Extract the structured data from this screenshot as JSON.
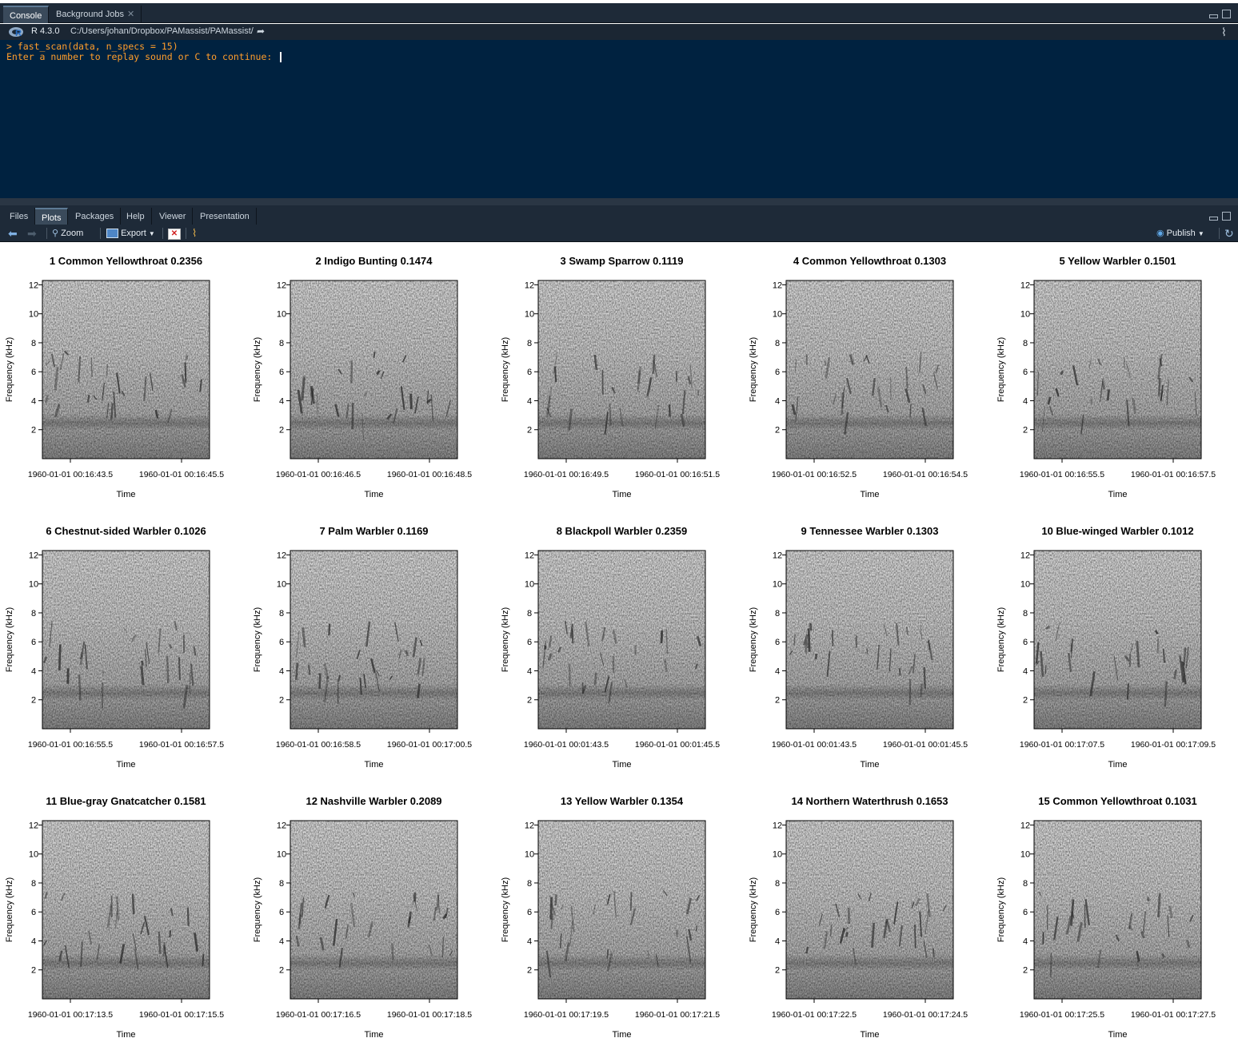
{
  "console_tabs": [
    {
      "label": "Console"
    },
    {
      "label": "Background Jobs"
    }
  ],
  "console": {
    "r_version": "R 4.3.0",
    "path": "C:/Users/johan/Dropbox/PAMassist/PAMassist/",
    "lines": [
      "> fast_scan(data, n_specs = 15)",
      "Enter a number to replay sound or C to continue: "
    ]
  },
  "pane_tabs": [
    {
      "label": "Files"
    },
    {
      "label": "Plots"
    },
    {
      "label": "Packages"
    },
    {
      "label": "Help"
    },
    {
      "label": "Viewer"
    },
    {
      "label": "Presentation"
    }
  ],
  "toolbar": {
    "zoom_label": "Zoom",
    "export_label": "Export",
    "publish_label": "Publish"
  },
  "colors": {
    "console_bg": "#002240",
    "console_text": "#ff9d2b",
    "chrome": "#1e2a38",
    "active_tab": "#3a4a5b"
  },
  "chart_data": [
    {
      "type": "heatmap",
      "title": "1 Common Yellowthroat 0.2356",
      "xlabel": "Time",
      "ylabel": "Frequency (kHz)",
      "yticks": [
        2,
        4,
        6,
        8,
        10,
        12
      ],
      "xticks": [
        "1960-01-01 00:16:43.5",
        "1960-01-01 00:16:45.5"
      ]
    },
    {
      "type": "heatmap",
      "title": "2 Indigo Bunting 0.1474",
      "xlabel": "Time",
      "ylabel": "Frequency (kHz)",
      "yticks": [
        2,
        4,
        6,
        8,
        10,
        12
      ],
      "xticks": [
        "1960-01-01 00:16:46.5",
        "1960-01-01 00:16:48.5"
      ]
    },
    {
      "type": "heatmap",
      "title": "3 Swamp Sparrow 0.1119",
      "xlabel": "Time",
      "ylabel": "Frequency (kHz)",
      "yticks": [
        2,
        4,
        6,
        8,
        10,
        12
      ],
      "xticks": [
        "1960-01-01 00:16:49.5",
        "1960-01-01 00:16:51.5"
      ]
    },
    {
      "type": "heatmap",
      "title": "4 Common Yellowthroat 0.1303",
      "xlabel": "Time",
      "ylabel": "Frequency (kHz)",
      "yticks": [
        2,
        4,
        6,
        8,
        10,
        12
      ],
      "xticks": [
        "1960-01-01 00:16:52.5",
        "1960-01-01 00:16:54.5"
      ]
    },
    {
      "type": "heatmap",
      "title": "5 Yellow Warbler 0.1501",
      "xlabel": "Time",
      "ylabel": "Frequency (kHz)",
      "yticks": [
        2,
        4,
        6,
        8,
        10,
        12
      ],
      "xticks": [
        "1960-01-01 00:16:55.5",
        "1960-01-01 00:16:57.5"
      ]
    },
    {
      "type": "heatmap",
      "title": "6 Chestnut-sided Warbler 0.1026",
      "xlabel": "Time",
      "ylabel": "Frequency (kHz)",
      "yticks": [
        2,
        4,
        6,
        8,
        10,
        12
      ],
      "xticks": [
        "1960-01-01 00:16:55.5",
        "1960-01-01 00:16:57.5"
      ]
    },
    {
      "type": "heatmap",
      "title": "7 Palm Warbler 0.1169",
      "xlabel": "Time",
      "ylabel": "Frequency (kHz)",
      "yticks": [
        2,
        4,
        6,
        8,
        10,
        12
      ],
      "xticks": [
        "1960-01-01 00:16:58.5",
        "1960-01-01 00:17:00.5"
      ]
    },
    {
      "type": "heatmap",
      "title": "8 Blackpoll Warbler 0.2359",
      "xlabel": "Time",
      "ylabel": "Frequency (kHz)",
      "yticks": [
        2,
        4,
        6,
        8,
        10,
        12
      ],
      "xticks": [
        "1960-01-01 00:01:43.5",
        "1960-01-01 00:01:45.5"
      ]
    },
    {
      "type": "heatmap",
      "title": "9 Tennessee Warbler 0.1303",
      "xlabel": "Time",
      "ylabel": "Frequency (kHz)",
      "yticks": [
        2,
        4,
        6,
        8,
        10,
        12
      ],
      "xticks": [
        "1960-01-01 00:01:43.5",
        "1960-01-01 00:01:45.5"
      ]
    },
    {
      "type": "heatmap",
      "title": "10 Blue-winged Warbler 0.1012",
      "xlabel": "Time",
      "ylabel": "Frequency (kHz)",
      "yticks": [
        2,
        4,
        6,
        8,
        10,
        12
      ],
      "xticks": [
        "1960-01-01 00:17:07.5",
        "1960-01-01 00:17:09.5"
      ]
    },
    {
      "type": "heatmap",
      "title": "11 Blue-gray Gnatcatcher 0.1581",
      "xlabel": "Time",
      "ylabel": "Frequency (kHz)",
      "yticks": [
        2,
        4,
        6,
        8,
        10,
        12
      ],
      "xticks": [
        "1960-01-01 00:17:13.5",
        "1960-01-01 00:17:15.5"
      ]
    },
    {
      "type": "heatmap",
      "title": "12 Nashville Warbler 0.2089",
      "xlabel": "Time",
      "ylabel": "Frequency (kHz)",
      "yticks": [
        2,
        4,
        6,
        8,
        10,
        12
      ],
      "xticks": [
        "1960-01-01 00:17:16.5",
        "1960-01-01 00:17:18.5"
      ]
    },
    {
      "type": "heatmap",
      "title": "13 Yellow Warbler 0.1354",
      "xlabel": "Time",
      "ylabel": "Frequency (kHz)",
      "yticks": [
        2,
        4,
        6,
        8,
        10,
        12
      ],
      "xticks": [
        "1960-01-01 00:17:19.5",
        "1960-01-01 00:17:21.5"
      ]
    },
    {
      "type": "heatmap",
      "title": "14 Northern Waterthrush 0.1653",
      "xlabel": "Time",
      "ylabel": "Frequency (kHz)",
      "yticks": [
        2,
        4,
        6,
        8,
        10,
        12
      ],
      "xticks": [
        "1960-01-01 00:17:22.5",
        "1960-01-01 00:17:24.5"
      ]
    },
    {
      "type": "heatmap",
      "title": "15 Common Yellowthroat 0.1031",
      "xlabel": "Time",
      "ylabel": "Frequency (kHz)",
      "yticks": [
        2,
        4,
        6,
        8,
        10,
        12
      ],
      "xticks": [
        "1960-01-01 00:17:25.5",
        "1960-01-01 00:17:27.5"
      ]
    }
  ]
}
